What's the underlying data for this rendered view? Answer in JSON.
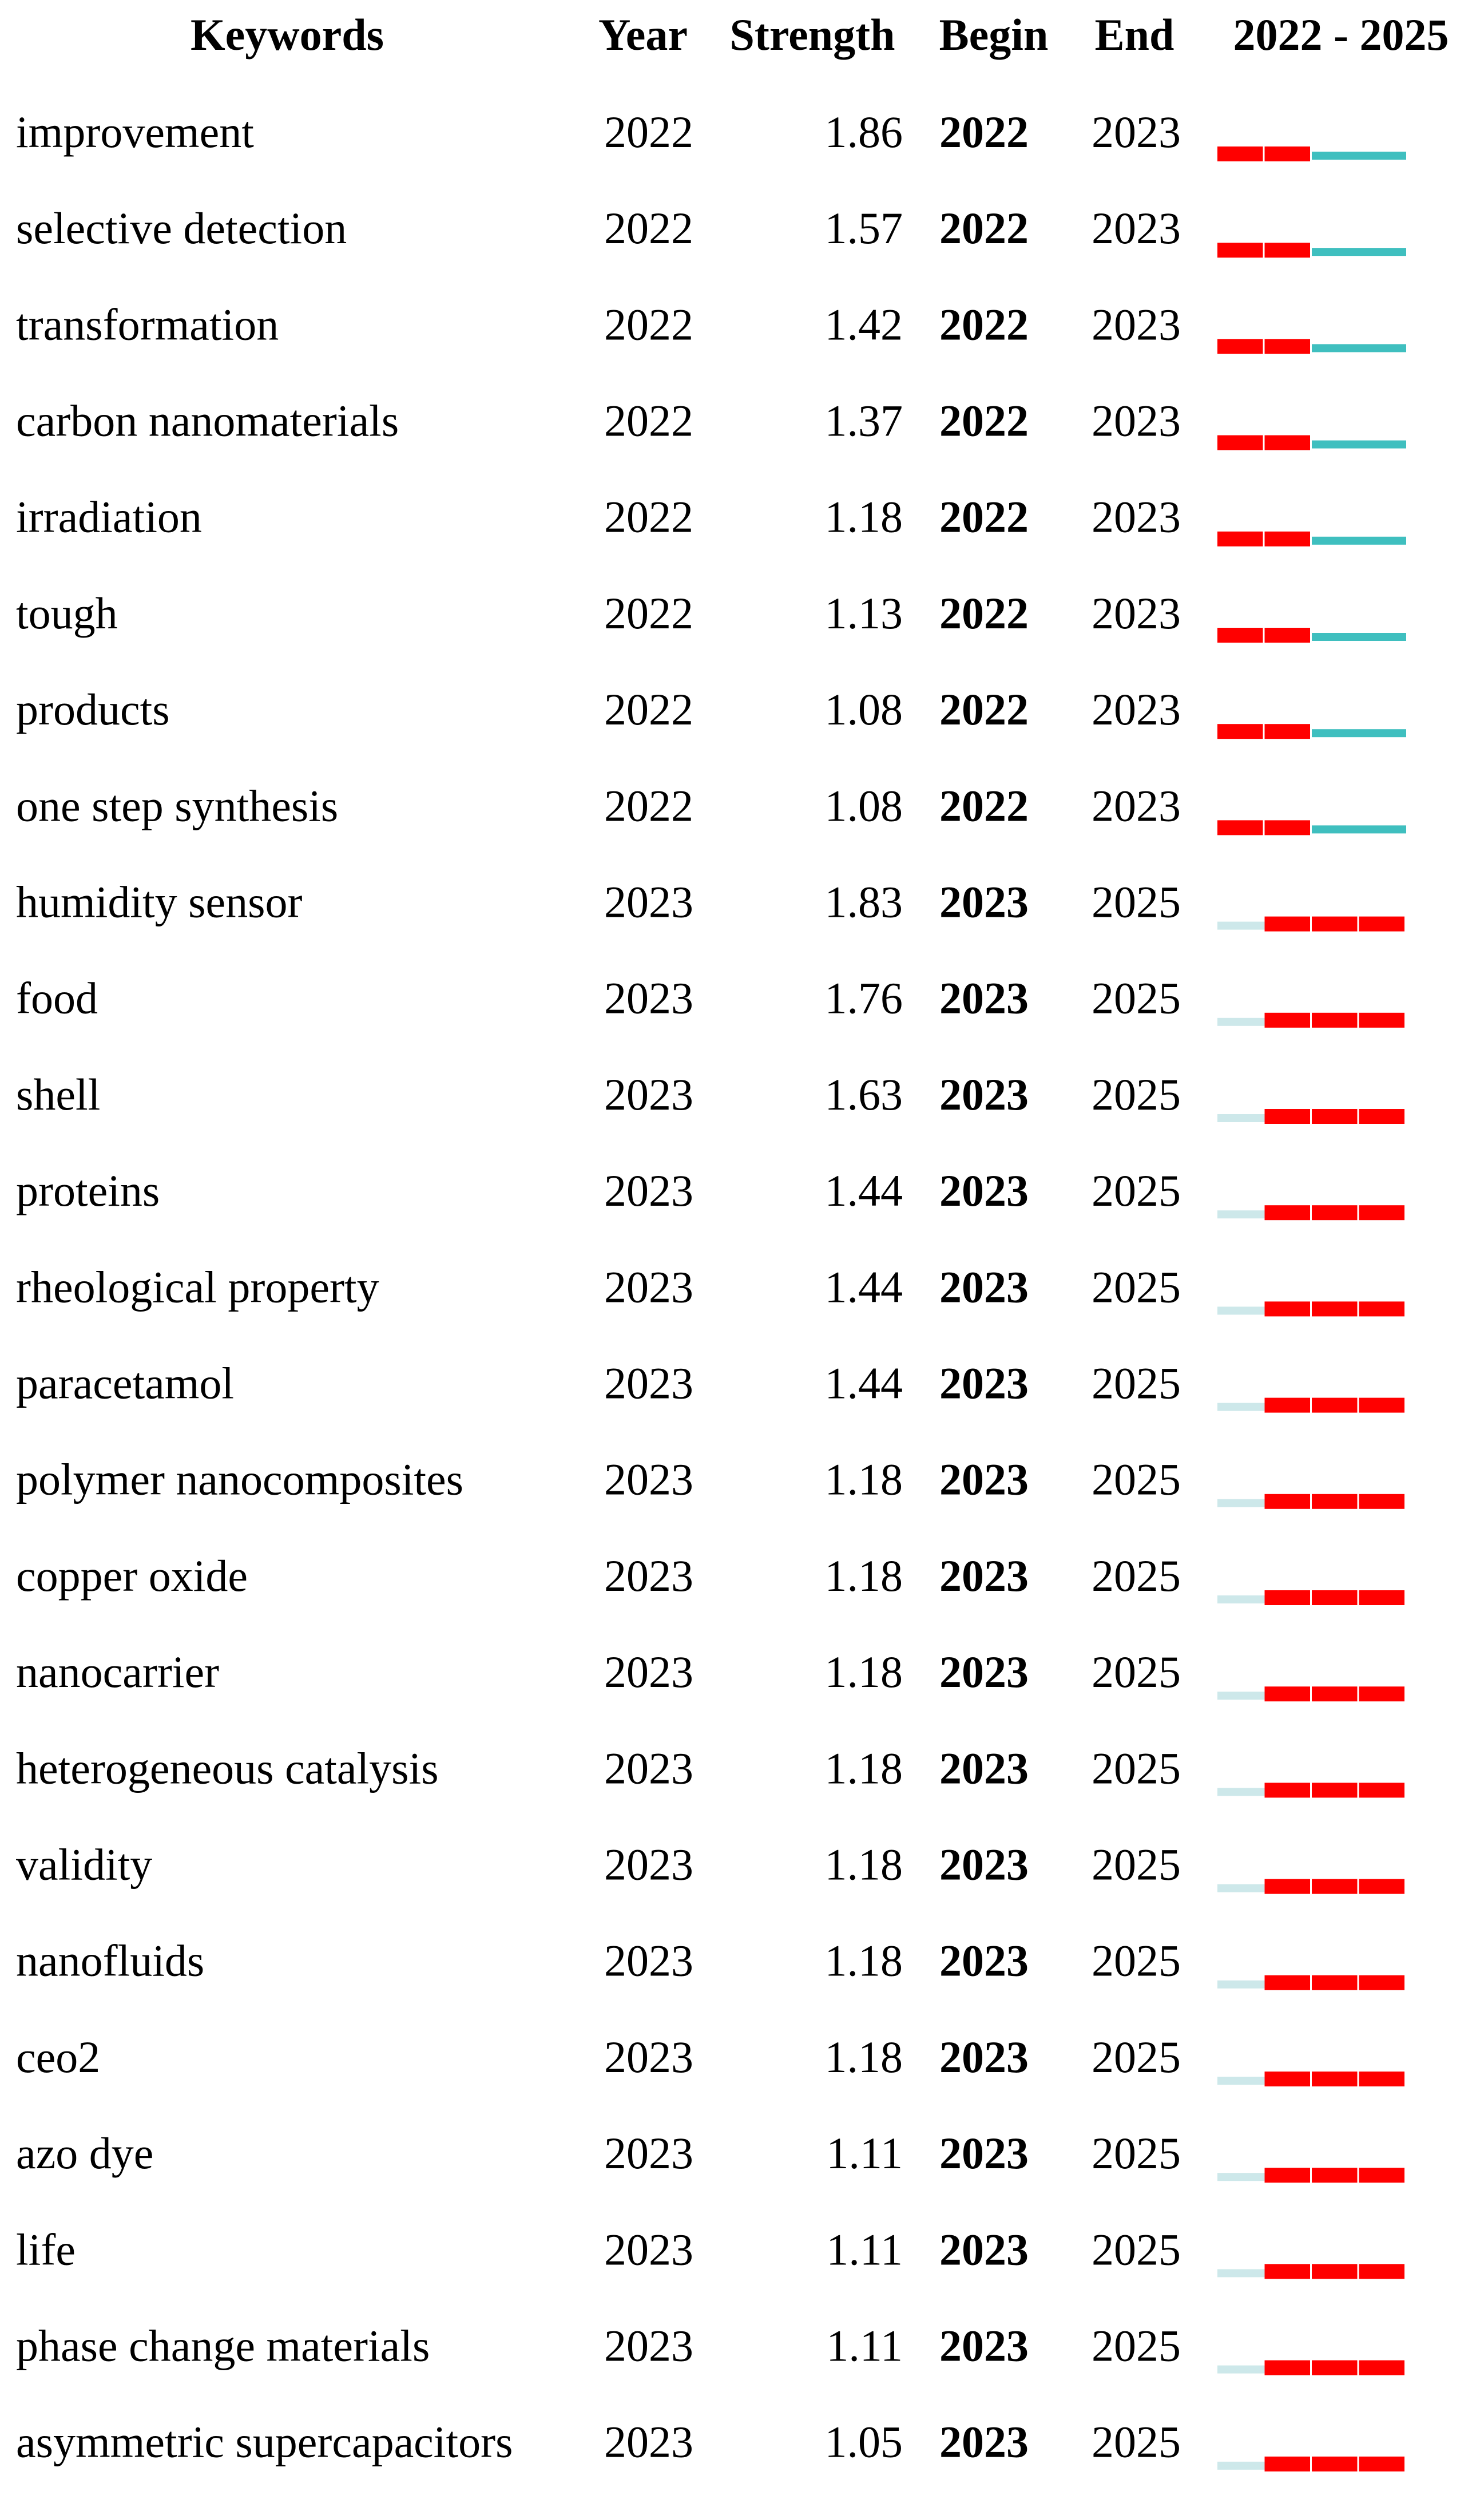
{
  "header": {
    "keywords": "Keywords",
    "year": "Year",
    "strength": "Strength",
    "begin": "Begin",
    "end": "End",
    "range": "2022 - 2025"
  },
  "rows": [
    {
      "keyword": "improvement",
      "year": 2022,
      "strength": 1.86,
      "begin": 2022,
      "end": 2023
    },
    {
      "keyword": "selective detection",
      "year": 2022,
      "strength": 1.57,
      "begin": 2022,
      "end": 2023
    },
    {
      "keyword": "transformation",
      "year": 2022,
      "strength": 1.42,
      "begin": 2022,
      "end": 2023
    },
    {
      "keyword": "carbon nanomaterials",
      "year": 2022,
      "strength": 1.37,
      "begin": 2022,
      "end": 2023
    },
    {
      "keyword": "irradiation",
      "year": 2022,
      "strength": 1.18,
      "begin": 2022,
      "end": 2023
    },
    {
      "keyword": "tough",
      "year": 2022,
      "strength": 1.13,
      "begin": 2022,
      "end": 2023
    },
    {
      "keyword": "products",
      "year": 2022,
      "strength": 1.08,
      "begin": 2022,
      "end": 2023
    },
    {
      "keyword": "one step synthesis",
      "year": 2022,
      "strength": 1.08,
      "begin": 2022,
      "end": 2023
    },
    {
      "keyword": "humidity sensor",
      "year": 2023,
      "strength": 1.83,
      "begin": 2023,
      "end": 2025
    },
    {
      "keyword": "food",
      "year": 2023,
      "strength": 1.76,
      "begin": 2023,
      "end": 2025
    },
    {
      "keyword": "shell",
      "year": 2023,
      "strength": 1.63,
      "begin": 2023,
      "end": 2025
    },
    {
      "keyword": "proteins",
      "year": 2023,
      "strength": 1.44,
      "begin": 2023,
      "end": 2025
    },
    {
      "keyword": "rheological property",
      "year": 2023,
      "strength": 1.44,
      "begin": 2023,
      "end": 2025
    },
    {
      "keyword": "paracetamol",
      "year": 2023,
      "strength": 1.44,
      "begin": 2023,
      "end": 2025
    },
    {
      "keyword": "polymer nanocomposites",
      "year": 2023,
      "strength": 1.18,
      "begin": 2023,
      "end": 2025
    },
    {
      "keyword": "copper oxide",
      "year": 2023,
      "strength": 1.18,
      "begin": 2023,
      "end": 2025
    },
    {
      "keyword": "nanocarrier",
      "year": 2023,
      "strength": 1.18,
      "begin": 2023,
      "end": 2025
    },
    {
      "keyword": "heterogeneous catalysis",
      "year": 2023,
      "strength": 1.18,
      "begin": 2023,
      "end": 2025
    },
    {
      "keyword": "validity",
      "year": 2023,
      "strength": 1.18,
      "begin": 2023,
      "end": 2025
    },
    {
      "keyword": "nanofluids",
      "year": 2023,
      "strength": 1.18,
      "begin": 2023,
      "end": 2025
    },
    {
      "keyword": "ceo2",
      "year": 2023,
      "strength": 1.18,
      "begin": 2023,
      "end": 2025
    },
    {
      "keyword": "azo dye",
      "year": 2023,
      "strength": 1.11,
      "begin": 2023,
      "end": 2025
    },
    {
      "keyword": "life",
      "year": 2023,
      "strength": 1.11,
      "begin": 2023,
      "end": 2025
    },
    {
      "keyword": "phase change materials",
      "year": 2023,
      "strength": 1.11,
      "begin": 2023,
      "end": 2025
    },
    {
      "keyword": "asymmetric supercapacitors",
      "year": 2023,
      "strength": 1.05,
      "begin": 2023,
      "end": 2025
    }
  ],
  "colors": {
    "burst": "#ff0000",
    "after": "#3fbfbf",
    "before": "#cde8ea"
  }
}
